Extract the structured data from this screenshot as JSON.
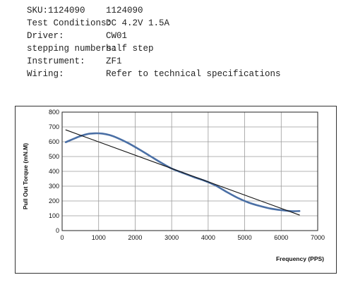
{
  "specs": [
    {
      "label": "SKU:1124090",
      "value": "1124090"
    },
    {
      "label": "Test Conditions:",
      "value": "DC 4.2V  1.5A"
    },
    {
      "label": "Driver:",
      "value": "CW01"
    },
    {
      "label": "stepping numbers:",
      "value": "half step"
    },
    {
      "label": "Instrument:",
      "value": "ZF1"
    },
    {
      "label": "Wiring:",
      "value": "Refer to technical specifications"
    }
  ],
  "chart_data": {
    "type": "line",
    "xlabel": "Frequency  (PPS)",
    "ylabel": "Pull Out Torque (mN.M)",
    "xlim": [
      0,
      7000
    ],
    "ylim": [
      0,
      800
    ],
    "xticks": [
      "0",
      "1000",
      "2000",
      "3000",
      "4000",
      "5000",
      "6000",
      "7000"
    ],
    "yticks": [
      "0",
      "100",
      "200",
      "300",
      "400",
      "500",
      "600",
      "700",
      "800"
    ],
    "grid": true,
    "series": [
      {
        "color": "#4a6fa5",
        "x": [
          100,
          300,
          500,
          700,
          900,
          1100,
          1300,
          1500,
          1800,
          2100,
          2400,
          2700,
          3000,
          3300,
          3600,
          3900,
          4200,
          4500,
          4800,
          5100,
          5400,
          5700,
          6000,
          6300,
          6500
        ],
        "y": [
          597,
          618,
          638,
          652,
          657,
          655,
          645,
          627,
          592,
          550,
          505,
          460,
          419,
          390,
          362,
          337,
          305,
          262,
          222,
          190,
          167,
          149,
          138,
          131,
          132
        ]
      },
      {
        "color": "#111111",
        "x": [
          100,
          6500
        ],
        "y": [
          680,
          105
        ]
      }
    ]
  }
}
